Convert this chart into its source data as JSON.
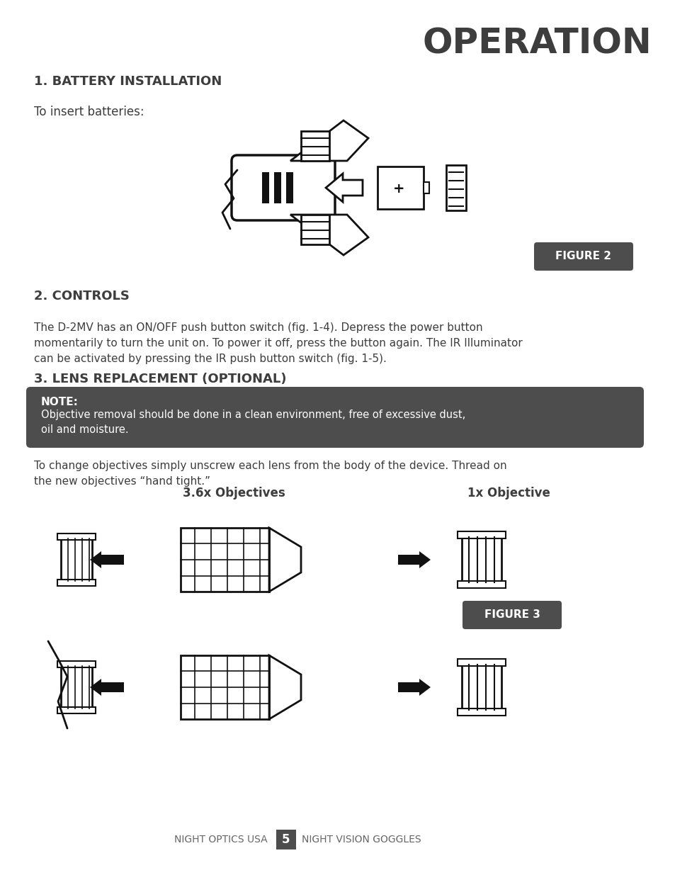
{
  "bg_color": "#ffffff",
  "text_color": "#3d3d3d",
  "dark_color": "#3d3d3d",
  "title": "OPERATION",
  "section1_title": "1. BATTERY INSTALLATION",
  "section1_body": "To insert batteries:",
  "figure2_label": "FIGURE 2",
  "section2_title": "2. CONTROLS",
  "section2_body": "The D-2MV has an ON/OFF push button switch (fig. 1-4). Depress the power button\nmomentarily to turn the unit on. To power it off, press the button again. The IR Illuminator\ncan be activated by pressing the IR push button switch (fig. 1-5).",
  "section3_title": "3. LENS REPLACEMENT (OPTIONAL)",
  "note_label": "NOTE:",
  "note_body": "Objective removal should be done in a clean environment, free of excessive dust,\noil and moisture.",
  "section3_body": "To change objectives simply unscrew each lens from the body of the device. Thread on\nthe new objectives “hand tight.”",
  "label_36x": "3.6x Objectives",
  "label_1x": "1x Objective",
  "figure3_label": "FIGURE 3",
  "footer_left": "NIGHT OPTICS USA",
  "footer_page": "5",
  "footer_right": "NIGHT VISION GOGGLES"
}
